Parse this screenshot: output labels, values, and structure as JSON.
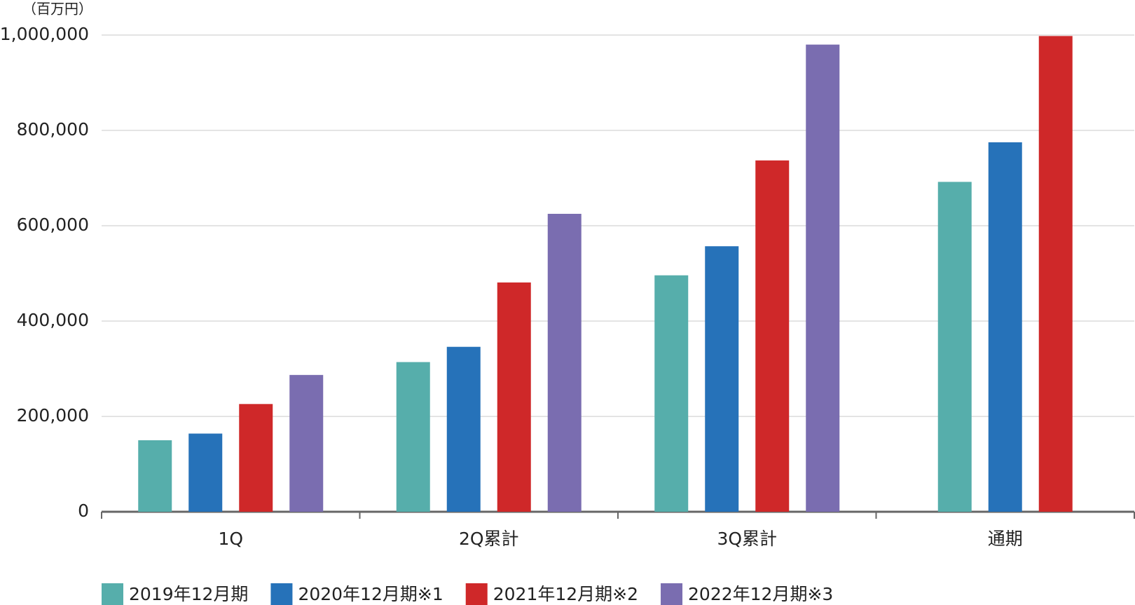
{
  "chart_data": {
    "type": "bar",
    "unit_label": "（百万円）",
    "categories": [
      "1Q",
      "2Q累計",
      "3Q累計",
      "通期"
    ],
    "series": [
      {
        "name": "2019年12月期",
        "color": "#56aeab",
        "values": [
          150000,
          314000,
          496000,
          692000
        ]
      },
      {
        "name": "2020年12月期※1",
        "color": "#2672b9",
        "values": [
          164000,
          346000,
          557000,
          775000
        ]
      },
      {
        "name": "2021年12月期※2",
        "color": "#cf2829",
        "values": [
          226000,
          481000,
          737000,
          998000
        ]
      },
      {
        "name": "2022年12月期※3",
        "color": "#7a6db0",
        "values": [
          287000,
          625000,
          980000,
          null
        ]
      }
    ],
    "ylim": [
      0,
      1000000
    ],
    "yticks": [
      0,
      {
        "value": 200000,
        "label": "200,000"
      },
      {
        "value": 400000,
        "label": "400,000"
      },
      {
        "value": 600000,
        "label": "600,000"
      },
      {
        "value": 800000,
        "label": "800,000"
      },
      {
        "value": 1000000,
        "label": "1,000,000"
      }
    ],
    "grid": true,
    "legend": "bottom"
  }
}
